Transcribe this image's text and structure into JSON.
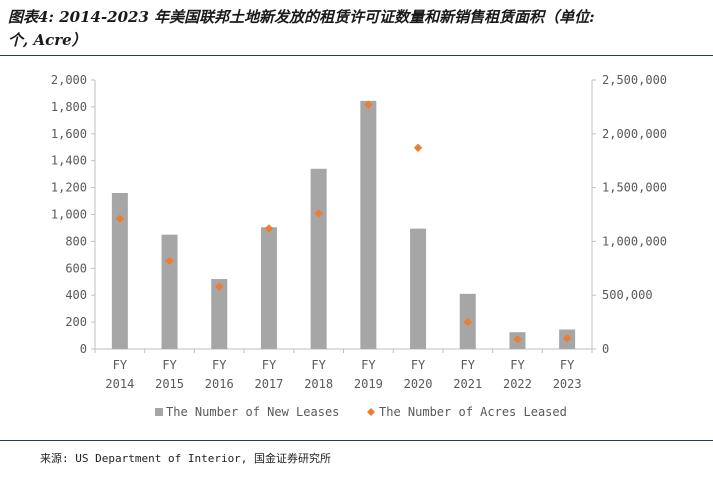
{
  "header": {
    "title_line1": "图表4: 2014-2023 年美国联邦土地新发放的租赁许可证数量和新销售租赁面积（单位:",
    "title_line2": "个, Acre）"
  },
  "footer": {
    "source": "来源: US Department of Interior, 国金证券研究所"
  },
  "chart_data": {
    "type": "bar",
    "categories": [
      [
        "FY",
        "2014"
      ],
      [
        "FY",
        "2015"
      ],
      [
        "FY",
        "2016"
      ],
      [
        "FY",
        "2017"
      ],
      [
        "FY",
        "2018"
      ],
      [
        "FY",
        "2019"
      ],
      [
        "FY",
        "2020"
      ],
      [
        "FY",
        "2021"
      ],
      [
        "FY",
        "2022"
      ],
      [
        "FY",
        "2023"
      ]
    ],
    "series": [
      {
        "name": "The Number of New Leases",
        "type": "bar",
        "axis": "left",
        "color": "#a6a6a6",
        "values": [
          1160,
          850,
          520,
          905,
          1340,
          1845,
          895,
          410,
          125,
          145
        ]
      },
      {
        "name": "The Number of Acres Leased",
        "type": "scatter",
        "marker": "diamond",
        "axis": "right",
        "color": "#ed7d31",
        "values": [
          1210000,
          820000,
          580000,
          1120000,
          1260000,
          2270000,
          1870000,
          250000,
          90000,
          100000
        ]
      }
    ],
    "y_left": {
      "lim": [
        0,
        2000
      ],
      "ticks": [
        "0",
        "200",
        "400",
        "600",
        "800",
        "1,000",
        "1,200",
        "1,400",
        "1,600",
        "1,800",
        "2,000"
      ]
    },
    "y_right": {
      "lim": [
        0,
        2500000
      ],
      "ticks": [
        "0",
        "500,000",
        "1,000,000",
        "1,500,000",
        "2,000,000",
        "2,500,000"
      ]
    },
    "grid": false,
    "legend_position": "bottom"
  }
}
